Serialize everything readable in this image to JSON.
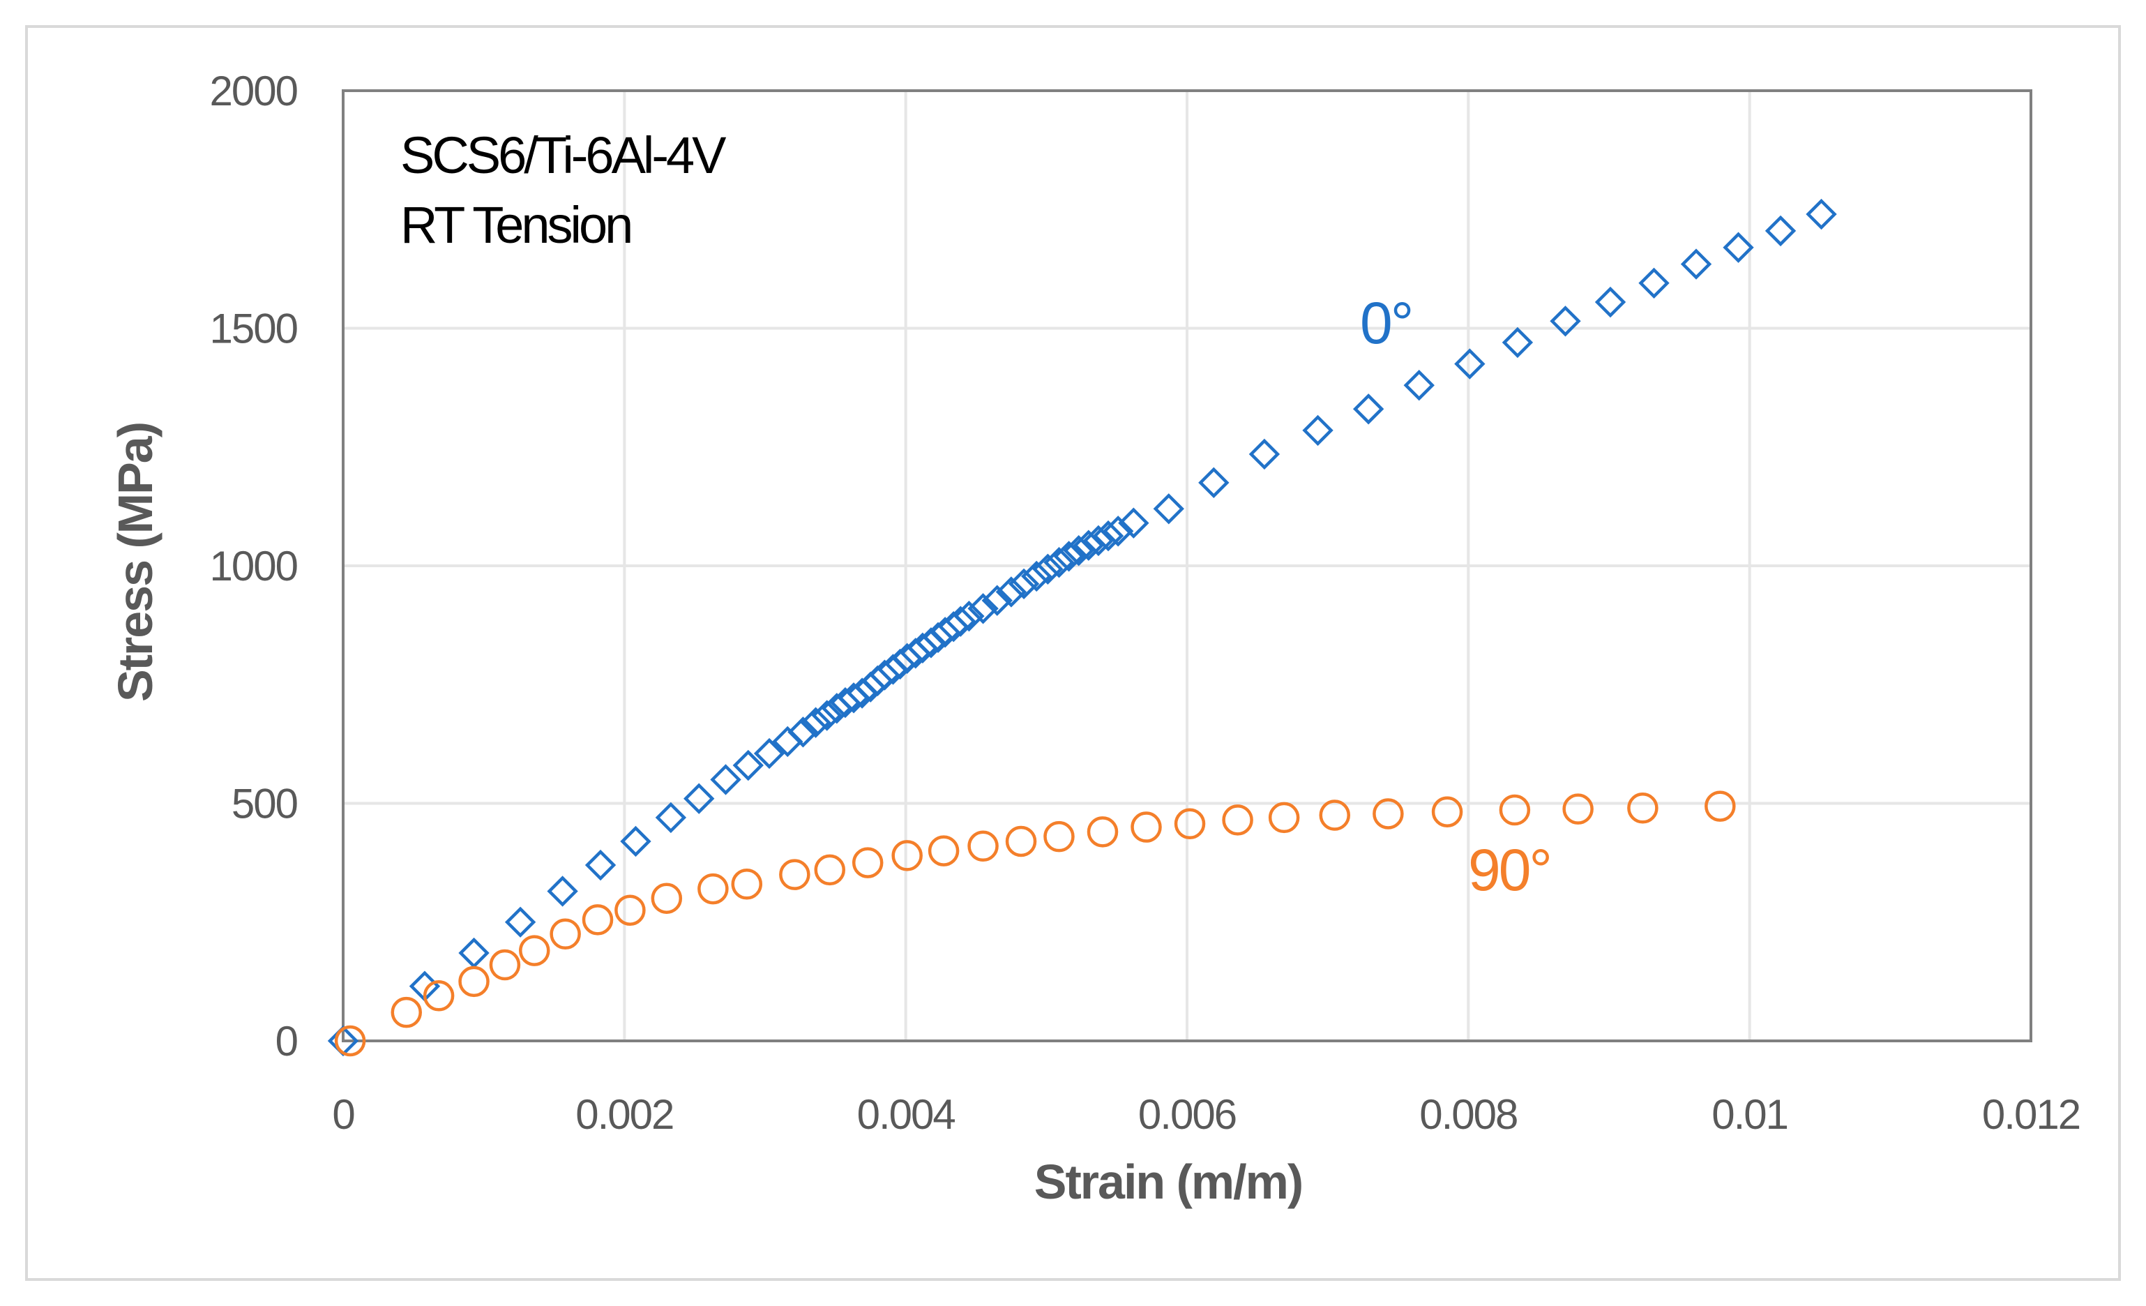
{
  "chart_data": {
    "type": "scatter",
    "xlabel": "Strain (m/m)",
    "ylabel": "Stress (MPa)",
    "xlim": [
      0,
      0.012
    ],
    "ylim": [
      0,
      2000
    ],
    "xticks": [
      0,
      0.002,
      0.004,
      0.006,
      0.008,
      0.01,
      0.012
    ],
    "xtick_labels": [
      "0",
      "0.002",
      "0.004",
      "0.006",
      "0.008",
      "0.01",
      "0.012"
    ],
    "yticks": [
      0,
      500,
      1000,
      1500,
      2000
    ],
    "ytick_labels": [
      "0",
      "500",
      "1000",
      "1500",
      "2000"
    ],
    "grid": true,
    "annotation_lines": [
      "SCS6/Ti-6Al-4V",
      "RT Tension"
    ],
    "colors": {
      "series_0": "#2172c8",
      "series_90": "#f47f2a",
      "grid": "#e6e6e6",
      "plot_border": "#808080",
      "frame": "#d9d9d9"
    },
    "series": [
      {
        "name": "0°",
        "label": "0°",
        "marker": "diamond",
        "x": [
          0.0,
          0.00058,
          0.00093,
          0.00126,
          0.00156,
          0.00183,
          0.00208,
          0.00233,
          0.00253,
          0.00272,
          0.00288,
          0.00303,
          0.00316,
          0.00327,
          0.00336,
          0.00344,
          0.00351,
          0.00357,
          0.00363,
          0.00369,
          0.00375,
          0.0038,
          0.00385,
          0.00391,
          0.00396,
          0.00401,
          0.00407,
          0.00412,
          0.00418,
          0.00423,
          0.00428,
          0.00434,
          0.00439,
          0.00445,
          0.00455,
          0.00465,
          0.00475,
          0.00484,
          0.00493,
          0.00501,
          0.00509,
          0.00516,
          0.00523,
          0.0053,
          0.00537,
          0.00544,
          0.00551,
          0.00562,
          0.00587,
          0.00619,
          0.00655,
          0.00693,
          0.00729,
          0.00765,
          0.00801,
          0.00835,
          0.00869,
          0.00901,
          0.00932,
          0.00962,
          0.00992,
          0.01022,
          0.01051
        ],
        "y": [
          0,
          115,
          185,
          250,
          315,
          370,
          420,
          470,
          510,
          550,
          580,
          605,
          630,
          650,
          670,
          685,
          700,
          712,
          722,
          732,
          745,
          758,
          770,
          782,
          793,
          805,
          816,
          827,
          838,
          849,
          860,
          872,
          883,
          894,
          910,
          927,
          945,
          962,
          978,
          993,
          1007,
          1020,
          1032,
          1043,
          1053,
          1063,
          1073,
          1090,
          1120,
          1175,
          1235,
          1285,
          1330,
          1380,
          1425,
          1470,
          1515,
          1555,
          1595,
          1635,
          1670,
          1705,
          1740
        ]
      },
      {
        "name": "90°",
        "label": "90°",
        "marker": "circle",
        "x": [
          5e-05,
          0.00045,
          0.00068,
          0.00093,
          0.00115,
          0.00136,
          0.00158,
          0.00181,
          0.00204,
          0.0023,
          0.00263,
          0.00287,
          0.00321,
          0.00346,
          0.00373,
          0.00401,
          0.00427,
          0.00455,
          0.00482,
          0.00509,
          0.0054,
          0.00571,
          0.00602,
          0.00636,
          0.00669,
          0.00705,
          0.00743,
          0.00785,
          0.00833,
          0.00878,
          0.00924,
          0.00979
        ],
        "y": [
          0,
          60,
          95,
          125,
          160,
          190,
          225,
          255,
          275,
          300,
          320,
          330,
          350,
          360,
          375,
          390,
          400,
          410,
          420,
          430,
          440,
          450,
          457,
          465,
          470,
          475,
          478,
          482,
          486,
          488,
          490,
          494
        ]
      }
    ]
  }
}
